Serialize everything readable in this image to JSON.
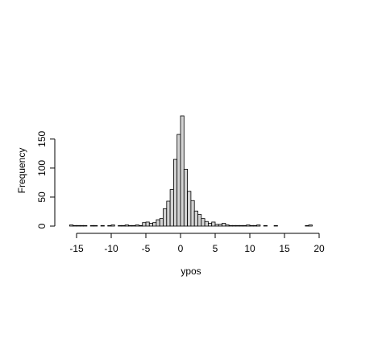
{
  "chart_data": {
    "type": "bar",
    "subtype": "histogram",
    "title": "",
    "xlabel": "ypos",
    "ylabel": "Frequency",
    "xlim": [
      -16.5,
      19.5
    ],
    "ylim": [
      0,
      190
    ],
    "bin_width": 0.5,
    "x_ticks": [
      -15,
      -10,
      -5,
      0,
      5,
      10,
      15,
      20
    ],
    "x_tick_labels": [
      "-15",
      "-10",
      "-5",
      "0",
      "5",
      "10",
      "15",
      "20"
    ],
    "y_ticks": [
      0,
      50,
      100,
      150
    ],
    "y_tick_labels": [
      "0",
      "50",
      "100",
      "150"
    ],
    "grid": false,
    "bar_fill": "#d3d3d3",
    "bar_stroke": "#000000",
    "bins": [
      {
        "x0": -16.0,
        "x1": -15.5,
        "count": 2
      },
      {
        "x0": -15.5,
        "x1": -15.0,
        "count": 1
      },
      {
        "x0": -15.0,
        "x1": -14.5,
        "count": 1
      },
      {
        "x0": -14.5,
        "x1": -14.0,
        "count": 1
      },
      {
        "x0": -14.0,
        "x1": -13.5,
        "count": 1
      },
      {
        "x0": -13.5,
        "x1": -13.0,
        "count": 0
      },
      {
        "x0": -13.0,
        "x1": -12.5,
        "count": 1
      },
      {
        "x0": -12.5,
        "x1": -12.0,
        "count": 1
      },
      {
        "x0": -12.0,
        "x1": -11.5,
        "count": 0
      },
      {
        "x0": -11.5,
        "x1": -11.0,
        "count": 1
      },
      {
        "x0": -11.0,
        "x1": -10.5,
        "count": 0
      },
      {
        "x0": -10.5,
        "x1": -10.0,
        "count": 1
      },
      {
        "x0": -10.0,
        "x1": -9.5,
        "count": 2
      },
      {
        "x0": -9.5,
        "x1": -9.0,
        "count": 0
      },
      {
        "x0": -9.0,
        "x1": -8.5,
        "count": 1
      },
      {
        "x0": -8.5,
        "x1": -8.0,
        "count": 1
      },
      {
        "x0": -8.0,
        "x1": -7.5,
        "count": 2
      },
      {
        "x0": -7.5,
        "x1": -7.0,
        "count": 1
      },
      {
        "x0": -7.0,
        "x1": -6.5,
        "count": 1
      },
      {
        "x0": -6.5,
        "x1": -6.0,
        "count": 2
      },
      {
        "x0": -6.0,
        "x1": -5.5,
        "count": 1
      },
      {
        "x0": -5.5,
        "x1": -5.0,
        "count": 6
      },
      {
        "x0": -5.0,
        "x1": -4.5,
        "count": 7
      },
      {
        "x0": -4.5,
        "x1": -4.0,
        "count": 5
      },
      {
        "x0": -4.0,
        "x1": -3.5,
        "count": 6
      },
      {
        "x0": -3.5,
        "x1": -3.0,
        "count": 11
      },
      {
        "x0": -3.0,
        "x1": -2.5,
        "count": 13
      },
      {
        "x0": -2.5,
        "x1": -2.0,
        "count": 30
      },
      {
        "x0": -2.0,
        "x1": -1.5,
        "count": 43
      },
      {
        "x0": -1.5,
        "x1": -1.0,
        "count": 63
      },
      {
        "x0": -1.0,
        "x1": -0.5,
        "count": 115
      },
      {
        "x0": -0.5,
        "x1": 0.0,
        "count": 158
      },
      {
        "x0": 0.0,
        "x1": 0.5,
        "count": 190
      },
      {
        "x0": 0.5,
        "x1": 1.0,
        "count": 98
      },
      {
        "x0": 1.0,
        "x1": 1.5,
        "count": 60
      },
      {
        "x0": 1.5,
        "x1": 2.0,
        "count": 44
      },
      {
        "x0": 2.0,
        "x1": 2.5,
        "count": 26
      },
      {
        "x0": 2.5,
        "x1": 3.0,
        "count": 20
      },
      {
        "x0": 3.0,
        "x1": 3.5,
        "count": 13
      },
      {
        "x0": 3.5,
        "x1": 4.0,
        "count": 8
      },
      {
        "x0": 4.0,
        "x1": 4.5,
        "count": 5
      },
      {
        "x0": 4.5,
        "x1": 5.0,
        "count": 7
      },
      {
        "x0": 5.0,
        "x1": 5.5,
        "count": 3
      },
      {
        "x0": 5.5,
        "x1": 6.0,
        "count": 3
      },
      {
        "x0": 6.0,
        "x1": 6.5,
        "count": 5
      },
      {
        "x0": 6.5,
        "x1": 7.0,
        "count": 2
      },
      {
        "x0": 7.0,
        "x1": 7.5,
        "count": 1
      },
      {
        "x0": 7.5,
        "x1": 8.0,
        "count": 1
      },
      {
        "x0": 8.0,
        "x1": 8.5,
        "count": 1
      },
      {
        "x0": 8.5,
        "x1": 9.0,
        "count": 1
      },
      {
        "x0": 9.0,
        "x1": 9.5,
        "count": 1
      },
      {
        "x0": 9.5,
        "x1": 10.0,
        "count": 2
      },
      {
        "x0": 10.0,
        "x1": 10.5,
        "count": 1
      },
      {
        "x0": 10.5,
        "x1": 11.0,
        "count": 1
      },
      {
        "x0": 11.0,
        "x1": 11.5,
        "count": 2
      },
      {
        "x0": 11.5,
        "x1": 12.0,
        "count": 0
      },
      {
        "x0": 12.0,
        "x1": 12.5,
        "count": 1
      },
      {
        "x0": 12.5,
        "x1": 13.0,
        "count": 0
      },
      {
        "x0": 13.0,
        "x1": 13.5,
        "count": 0
      },
      {
        "x0": 13.5,
        "x1": 14.0,
        "count": 1
      },
      {
        "x0": 14.0,
        "x1": 14.5,
        "count": 0
      },
      {
        "x0": 14.5,
        "x1": 15.0,
        "count": 0
      },
      {
        "x0": 15.0,
        "x1": 15.5,
        "count": 0
      },
      {
        "x0": 15.5,
        "x1": 16.0,
        "count": 0
      },
      {
        "x0": 16.0,
        "x1": 16.5,
        "count": 0
      },
      {
        "x0": 16.5,
        "x1": 17.0,
        "count": 0
      },
      {
        "x0": 17.0,
        "x1": 17.5,
        "count": 0
      },
      {
        "x0": 17.5,
        "x1": 18.0,
        "count": 0
      },
      {
        "x0": 18.0,
        "x1": 18.5,
        "count": 1
      },
      {
        "x0": 18.5,
        "x1": 19.0,
        "count": 2
      }
    ]
  }
}
